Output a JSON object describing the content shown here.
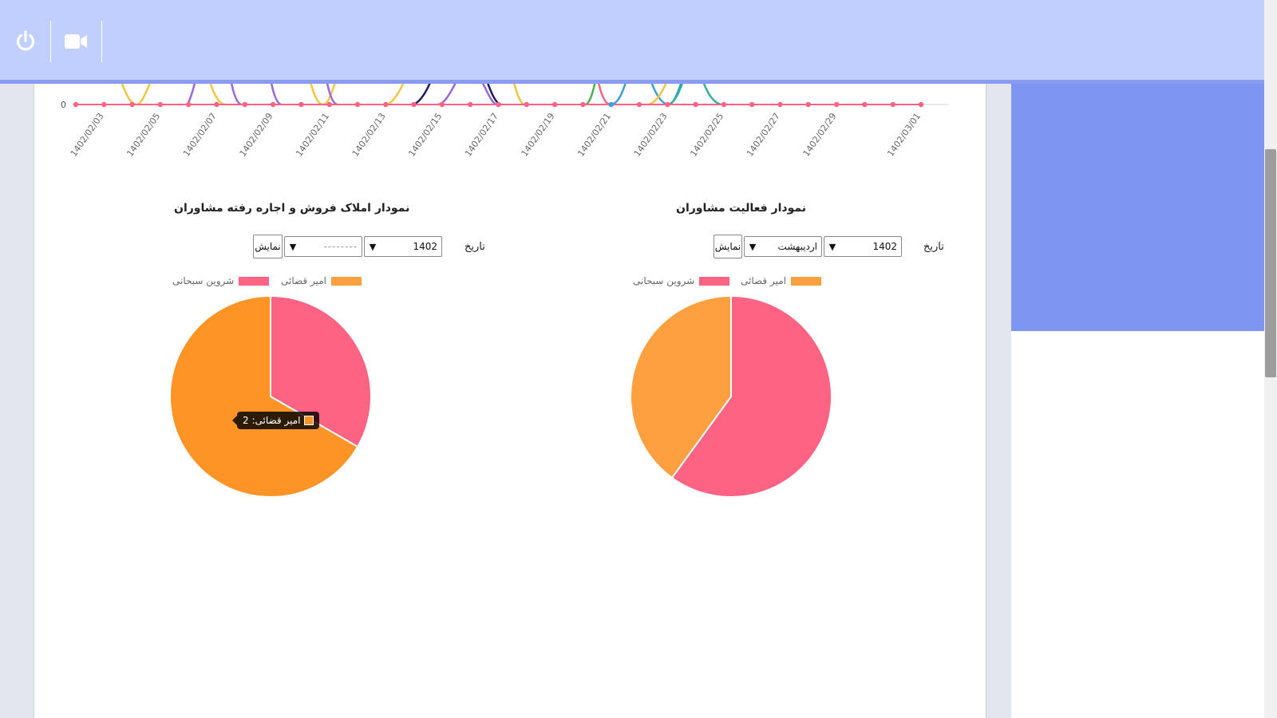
{
  "header": {
    "power_icon": "power-icon",
    "video_icon": "video-camera-icon"
  },
  "line_chart": {
    "y_tick": "0",
    "x_ticks": [
      "1402/02/03",
      "1402/02/05",
      "1402/02/07",
      "1402/02/09",
      "1402/02/11",
      "1402/02/13",
      "1402/02/15",
      "1402/02/17",
      "1402/02/19",
      "1402/02/21",
      "1402/02/23",
      "1402/02/25",
      "1402/02/27",
      "1402/02/29",
      "1402/03/01"
    ]
  },
  "activity_chart": {
    "title": "نمودار فعالیت مشاوران",
    "date_label": "تاریخ",
    "year_value": "1402",
    "month_value": "اردیبهشت",
    "show_button": "نمایش"
  },
  "sales_chart": {
    "title": "نمودار املاک فروش و اجاره رفته مشاوران",
    "date_label": "تاریخ",
    "year_value": "1402",
    "month_value": "--------",
    "show_button": "نمایش",
    "tooltip": "امیر قضائی: 2"
  },
  "chart_data": [
    {
      "type": "pie",
      "title": "نمودار فعالیت مشاوران",
      "legend_position": "top",
      "series": [
        {
          "name": "امیر قضائی",
          "value": 2,
          "color": "#ffa040"
        },
        {
          "name": "شروین سبحانی",
          "value": 3,
          "color": "#ff6384"
        }
      ]
    },
    {
      "type": "pie",
      "title": "نمودار املاک فروش و اجاره رفته مشاوران",
      "legend_position": "top",
      "series": [
        {
          "name": "امیر قضائی",
          "value": 2,
          "color": "#ff9426"
        },
        {
          "name": "شروین سبحانی",
          "value": 1,
          "color": "#ff6384"
        }
      ]
    }
  ]
}
